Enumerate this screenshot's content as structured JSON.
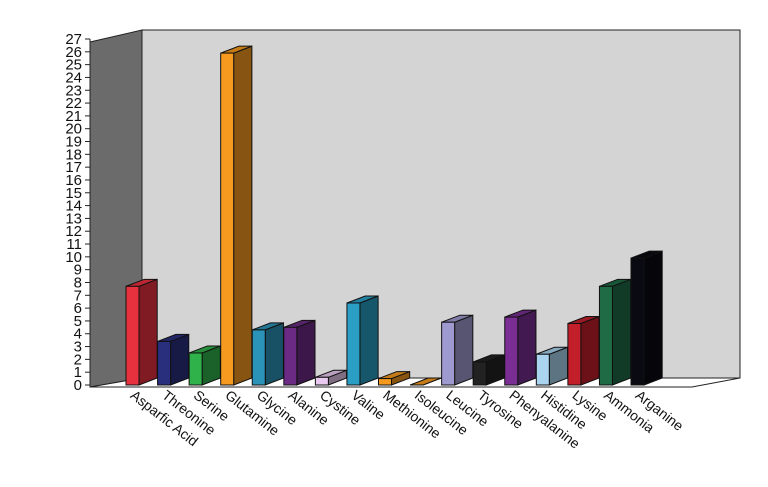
{
  "chart_data": {
    "type": "bar",
    "title": "",
    "xlabel": "",
    "ylabel": "",
    "ylim": [
      0,
      27
    ],
    "grid": false,
    "legend": "none",
    "yticks": [
      "0",
      "1",
      "2",
      "3",
      "4",
      "5",
      "6",
      "7",
      "8",
      "9",
      "10",
      "11",
      "12",
      "13",
      "14",
      "15",
      "16",
      "17",
      "18",
      "19",
      "20",
      "21",
      "22",
      "23",
      "24",
      "25",
      "26",
      "27"
    ],
    "categories": [
      "Asparfic Acid",
      "Threonine",
      "Serine",
      "Glutamine",
      "Glycine",
      "Alanine",
      "Cystine",
      "Valine",
      "Methionine",
      "Isoleucine",
      "Leucine",
      "Tyrosine",
      "Phenyalanine",
      "Histidine",
      "Lysine",
      "Ammonia",
      "Arganine"
    ],
    "values": [
      7.7,
      3.4,
      2.5,
      25.9,
      4.3,
      4.5,
      0.6,
      6.4,
      0.5,
      0,
      4.9,
      1.8,
      5.3,
      2.4,
      4.8,
      7.7,
      9.9
    ],
    "colors": [
      "#e8313f",
      "#2a2f7d",
      "#2fb24a",
      "#f59a1e",
      "#2b93b8",
      "#6b2b84",
      "#e9c9ef",
      "#2a9ec4",
      "#f59a1e",
      "#f59a1e",
      "#9e9ad0",
      "#222222",
      "#7a2e94",
      "#a9d3ef",
      "#c21f2a",
      "#1e6b46",
      "#0a0a12"
    ],
    "panel_colors": {
      "back_wall": "#d4d4d4",
      "side_wall": "#6b6b6b",
      "floor": "#ffffff"
    }
  }
}
